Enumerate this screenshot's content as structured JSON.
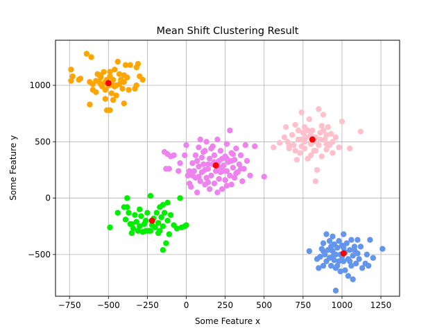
{
  "chart_data": {
    "type": "scatter",
    "title": "Mean Shift Clustering Result",
    "xlabel": "Some Feature x",
    "ylabel": "Some Feature y",
    "xlim": [
      -840,
      1370
    ],
    "ylim": [
      -870,
      1400
    ],
    "xticks": [
      -750,
      -500,
      -250,
      0,
      250,
      500,
      750,
      1000,
      1250
    ],
    "yticks": [
      -500,
      0,
      500,
      1000
    ],
    "grid": true,
    "legend": "none",
    "center_color": "#ff0000",
    "clusters": [
      {
        "color": "#ffa500",
        "center": [
          -500,
          1020
        ],
        "points": [
          [
            -740,
            1140
          ],
          [
            -740,
            1040
          ],
          [
            -730,
            1080
          ],
          [
            -690,
            1050
          ],
          [
            -680,
            1060
          ],
          [
            -640,
            1280
          ],
          [
            -620,
            1030
          ],
          [
            -610,
            1250
          ],
          [
            -600,
            1010
          ],
          [
            -600,
            960
          ],
          [
            -580,
            1040
          ],
          [
            -570,
            1100
          ],
          [
            -560,
            1030
          ],
          [
            -550,
            1070
          ],
          [
            -540,
            990
          ],
          [
            -530,
            1120
          ],
          [
            -520,
            960
          ],
          [
            -510,
            1050
          ],
          [
            -500,
            1000
          ],
          [
            -490,
            1080
          ],
          [
            -480,
            930
          ],
          [
            -470,
            1050
          ],
          [
            -460,
            1140
          ],
          [
            -450,
            1000
          ],
          [
            -440,
            1210
          ],
          [
            -430,
            1100
          ],
          [
            -420,
            1050
          ],
          [
            -410,
            970
          ],
          [
            -400,
            1090
          ],
          [
            -390,
            1180
          ],
          [
            -380,
            1070
          ],
          [
            -370,
            960
          ],
          [
            -360,
            1180
          ],
          [
            -330,
            970
          ],
          [
            -320,
            1160
          ],
          [
            -310,
            1190
          ],
          [
            -300,
            1080
          ],
          [
            -280,
            1050
          ],
          [
            -620,
            830
          ],
          [
            -520,
            880
          ],
          [
            -510,
            780
          ],
          [
            -490,
            780
          ],
          [
            -470,
            870
          ],
          [
            -400,
            840
          ],
          [
            -320,
            1000
          ],
          [
            -580,
            940
          ],
          [
            -550,
            1010
          ],
          [
            -460,
            990
          ],
          [
            -430,
            1010
          ],
          [
            -400,
            1030
          ],
          [
            -520,
            1030
          ],
          [
            -490,
            1120
          ],
          [
            -450,
            910
          ],
          [
            -550,
            1090
          ],
          [
            -470,
            1000
          ]
        ]
      },
      {
        "color": "#ffc0cb",
        "center": [
          810,
          520
        ],
        "points": [
          [
            560,
            450
          ],
          [
            600,
            490
          ],
          [
            630,
            540
          ],
          [
            640,
            630
          ],
          [
            650,
            500
          ],
          [
            660,
            470
          ],
          [
            680,
            560
          ],
          [
            690,
            470
          ],
          [
            700,
            650
          ],
          [
            710,
            340
          ],
          [
            720,
            520
          ],
          [
            730,
            400
          ],
          [
            740,
            760
          ],
          [
            750,
            580
          ],
          [
            760,
            440
          ],
          [
            760,
            630
          ],
          [
            770,
            540
          ],
          [
            780,
            350
          ],
          [
            790,
            700
          ],
          [
            800,
            480
          ],
          [
            810,
            600
          ],
          [
            820,
            420
          ],
          [
            830,
            150
          ],
          [
            830,
            540
          ],
          [
            840,
            250
          ],
          [
            850,
            790
          ],
          [
            850,
            470
          ],
          [
            860,
            580
          ],
          [
            870,
            370
          ],
          [
            880,
            740
          ],
          [
            890,
            520
          ],
          [
            900,
            430
          ],
          [
            910,
            630
          ],
          [
            920,
            470
          ],
          [
            930,
            570
          ],
          [
            940,
            400
          ],
          [
            960,
            540
          ],
          [
            980,
            450
          ],
          [
            1000,
            680
          ],
          [
            1050,
            440
          ],
          [
            1120,
            590
          ],
          [
            700,
            420
          ],
          [
            740,
            520
          ],
          [
            780,
            600
          ],
          [
            820,
            500
          ],
          [
            860,
            520
          ],
          [
            900,
            560
          ],
          [
            740,
            460
          ],
          [
            800,
            380
          ],
          [
            870,
            640
          ],
          [
            800,
            560
          ],
          [
            760,
            500
          ],
          [
            830,
            420
          ],
          [
            900,
            480
          ],
          [
            720,
            600
          ],
          [
            660,
            440
          ],
          [
            940,
            500
          ],
          [
            880,
            600
          ]
        ]
      },
      {
        "color": "#ee82ee",
        "center": [
          190,
          290
        ],
        "points": [
          [
            -140,
            410
          ],
          [
            -120,
            390
          ],
          [
            -100,
            370
          ],
          [
            -80,
            380
          ],
          [
            -130,
            260
          ],
          [
            -110,
            260
          ],
          [
            -50,
            240
          ],
          [
            -40,
            310
          ],
          [
            0,
            470
          ],
          [
            10,
            200
          ],
          [
            20,
            130
          ],
          [
            20,
            240
          ],
          [
            30,
            100
          ],
          [
            40,
            310
          ],
          [
            50,
            240
          ],
          [
            60,
            380
          ],
          [
            60,
            180
          ],
          [
            70,
            50
          ],
          [
            80,
            450
          ],
          [
            80,
            280
          ],
          [
            90,
            520
          ],
          [
            90,
            150
          ],
          [
            100,
            360
          ],
          [
            100,
            230
          ],
          [
            110,
            300
          ],
          [
            120,
            420
          ],
          [
            120,
            120
          ],
          [
            130,
            180
          ],
          [
            130,
            500
          ],
          [
            140,
            260
          ],
          [
            150,
            350
          ],
          [
            150,
            80
          ],
          [
            160,
            440
          ],
          [
            160,
            200
          ],
          [
            170,
            300
          ],
          [
            180,
            380
          ],
          [
            180,
            130
          ],
          [
            190,
            240
          ],
          [
            200,
            520
          ],
          [
            200,
            50
          ],
          [
            210,
            330
          ],
          [
            210,
            170
          ],
          [
            220,
            420
          ],
          [
            220,
            230
          ],
          [
            230,
            80
          ],
          [
            240,
            290
          ],
          [
            250,
            370
          ],
          [
            250,
            160
          ],
          [
            260,
            480
          ],
          [
            260,
            240
          ],
          [
            270,
            320
          ],
          [
            280,
            200
          ],
          [
            280,
            600
          ],
          [
            290,
            400
          ],
          [
            290,
            120
          ],
          [
            300,
            270
          ],
          [
            310,
            340
          ],
          [
            310,
            180
          ],
          [
            320,
            440
          ],
          [
            330,
            230
          ],
          [
            340,
            300
          ],
          [
            350,
            380
          ],
          [
            360,
            150
          ],
          [
            370,
            260
          ],
          [
            380,
            470
          ],
          [
            390,
            330
          ],
          [
            410,
            200
          ],
          [
            440,
            460
          ],
          [
            500,
            190
          ],
          [
            -10,
            380
          ],
          [
            40,
            200
          ],
          [
            70,
            330
          ],
          [
            110,
            410
          ],
          [
            140,
            140
          ],
          [
            170,
            460
          ],
          [
            200,
            300
          ],
          [
            230,
            350
          ],
          [
            260,
            110
          ],
          [
            290,
            330
          ],
          [
            320,
            220
          ],
          [
            350,
            260
          ],
          [
            240,
            240
          ],
          [
            180,
            320
          ],
          [
            140,
            300
          ],
          [
            220,
            270
          ],
          [
            260,
            350
          ],
          [
            120,
            250
          ],
          [
            300,
            390
          ],
          [
            80,
            190
          ]
        ]
      },
      {
        "color": "#00ee00",
        "center": [
          -220,
          -200
        ],
        "points": [
          [
            -490,
            -260
          ],
          [
            -440,
            -130
          ],
          [
            -400,
            -80
          ],
          [
            -390,
            -190
          ],
          [
            -380,
            -80
          ],
          [
            -380,
            0
          ],
          [
            -370,
            -130
          ],
          [
            -360,
            -230
          ],
          [
            -350,
            -310
          ],
          [
            -340,
            -270
          ],
          [
            -330,
            -150
          ],
          [
            -320,
            -210
          ],
          [
            -310,
            -290
          ],
          [
            -300,
            -250
          ],
          [
            -290,
            -160
          ],
          [
            -280,
            -300
          ],
          [
            -270,
            -230
          ],
          [
            -260,
            -200
          ],
          [
            -250,
            -130
          ],
          [
            -240,
            -290
          ],
          [
            -230,
            20
          ],
          [
            -220,
            -240
          ],
          [
            -210,
            -180
          ],
          [
            -200,
            -260
          ],
          [
            -190,
            -130
          ],
          [
            -180,
            -220
          ],
          [
            -170,
            -80
          ],
          [
            -170,
            -290
          ],
          [
            -160,
            -170
          ],
          [
            -150,
            -250
          ],
          [
            -150,
            -460
          ],
          [
            -140,
            -130
          ],
          [
            -130,
            -400
          ],
          [
            -120,
            -200
          ],
          [
            -120,
            -40
          ],
          [
            -110,
            -320
          ],
          [
            -100,
            -150
          ],
          [
            -80,
            -240
          ],
          [
            -60,
            -270
          ],
          [
            -40,
            0
          ],
          [
            -30,
            -260
          ],
          [
            -10,
            -250
          ],
          [
            0,
            -240
          ],
          [
            -300,
            -100
          ],
          [
            -230,
            -290
          ],
          [
            -180,
            -310
          ],
          [
            -260,
            -290
          ],
          [
            -150,
            -60
          ],
          [
            -350,
            -230
          ]
        ]
      },
      {
        "color": "#6495ed",
        "center": [
          1010,
          -490
        ],
        "points": [
          [
            790,
            -470
          ],
          [
            840,
            -540
          ],
          [
            850,
            -620
          ],
          [
            860,
            -520
          ],
          [
            870,
            -450
          ],
          [
            880,
            -600
          ],
          [
            880,
            -400
          ],
          [
            890,
            -500
          ],
          [
            900,
            -560
          ],
          [
            900,
            -320
          ],
          [
            910,
            -460
          ],
          [
            920,
            -530
          ],
          [
            920,
            -380
          ],
          [
            930,
            -600
          ],
          [
            940,
            -470
          ],
          [
            940,
            -340
          ],
          [
            950,
            -550
          ],
          [
            950,
            -410
          ],
          [
            960,
            -620
          ],
          [
            960,
            -500
          ],
          [
            960,
            -820
          ],
          [
            970,
            -440
          ],
          [
            980,
            -560
          ],
          [
            980,
            -380
          ],
          [
            990,
            -500
          ],
          [
            990,
            -650
          ],
          [
            1000,
            -420
          ],
          [
            1010,
            -560
          ],
          [
            1010,
            -320
          ],
          [
            1020,
            -480
          ],
          [
            1020,
            -640
          ],
          [
            1030,
            -400
          ],
          [
            1040,
            -540
          ],
          [
            1040,
            -690
          ],
          [
            1050,
            -460
          ],
          [
            1060,
            -370
          ],
          [
            1060,
            -600
          ],
          [
            1070,
            -510
          ],
          [
            1070,
            -720
          ],
          [
            1080,
            -430
          ],
          [
            1090,
            -580
          ],
          [
            1100,
            -490
          ],
          [
            1100,
            -370
          ],
          [
            1110,
            -540
          ],
          [
            1120,
            -430
          ],
          [
            1150,
            -580
          ],
          [
            1160,
            -500
          ],
          [
            1170,
            -600
          ],
          [
            1180,
            -370
          ],
          [
            1200,
            -530
          ],
          [
            1260,
            -450
          ],
          [
            880,
            -470
          ],
          [
            930,
            -430
          ],
          [
            1000,
            -520
          ],
          [
            1050,
            -560
          ],
          [
            1130,
            -620
          ],
          [
            970,
            -600
          ],
          [
            1010,
            -440
          ],
          [
            1080,
            -460
          ],
          [
            940,
            -520
          ]
        ]
      }
    ]
  }
}
